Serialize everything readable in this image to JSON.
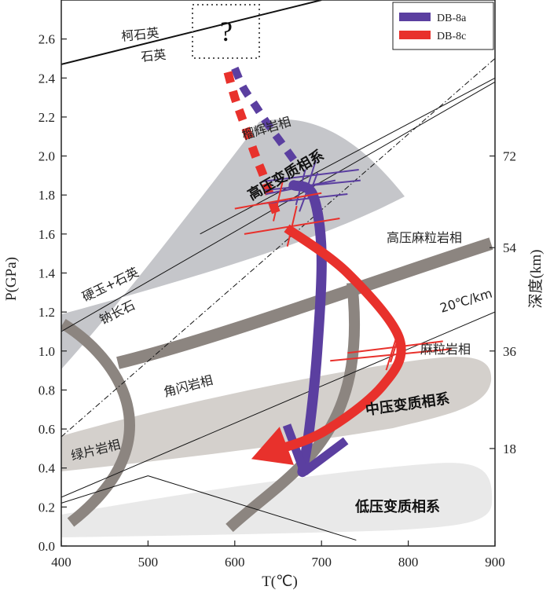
{
  "chart_data": {
    "type": "line",
    "title": "",
    "xlabel": "T(℃)",
    "ylabel": "P(GPa)",
    "y2label": "深度(km)",
    "xlim": [
      400,
      900
    ],
    "ylim": [
      0,
      2.8
    ],
    "xticks": [
      400,
      500,
      600,
      700,
      800,
      900
    ],
    "yticks": [
      "0.0",
      "0.2",
      "0.4",
      "0.6",
      "0.8",
      "1.0",
      "1.2",
      "1.4",
      "1.6",
      "1.8",
      "2.0",
      "2.2",
      "2.4",
      "2.6"
    ],
    "depth_ticks": [
      {
        "label": "18",
        "p": 0.5
      },
      {
        "label": "36",
        "p": 1.0
      },
      {
        "label": "54",
        "p": 1.53
      },
      {
        "label": "72",
        "p": 2.0
      }
    ],
    "legend": {
      "position": "top-right",
      "entries": [
        {
          "name": "DB-8a",
          "color": "#5b3fa0"
        },
        {
          "name": "DB-8c",
          "color": "#e8312c"
        }
      ]
    },
    "colors": {
      "db8a": "#5b3fa0",
      "db8c": "#e8312c",
      "hp_field": "#c5c6ca",
      "mp_field": "#d4d0cc",
      "lp_field": "#e8e8e8",
      "facies_band": "#8c8580"
    },
    "question_mark": "?",
    "reactions": [
      {
        "name": "coesite-quartz",
        "labels": [
          "柯石英",
          "石英"
        ],
        "x": [
          400,
          700
        ],
        "y": [
          2.47,
          2.8
        ]
      },
      {
        "name": "jadeite-quartz-albite",
        "labels": [
          "硬玉+石英",
          "钠长石"
        ],
        "x": [
          400,
          900
        ],
        "y": [
          1.1,
          2.38
        ]
      },
      {
        "name": "geotherm-20",
        "label": "20℃/km",
        "x": [
          400,
          900
        ],
        "y": [
          0.56,
          2.5
        ]
      }
    ],
    "facies": [
      {
        "name": "eclogite",
        "label": "榴辉岩相"
      },
      {
        "name": "hp-granulite",
        "label": "高压麻粒岩相"
      },
      {
        "name": "granulite",
        "label": "麻粒岩相"
      },
      {
        "name": "amphibolite",
        "label": "角闪岩相"
      },
      {
        "name": "greenschist",
        "label": "绿片岩相"
      }
    ],
    "facies_series": [
      {
        "name": "high-pressure",
        "label": "高压变质相系"
      },
      {
        "name": "medium-pressure",
        "label": "中压变质相系"
      },
      {
        "name": "low-pressure",
        "label": "低压变质相系"
      }
    ],
    "series": [
      {
        "name": "DB-8a",
        "color": "#5b3fa0",
        "prograde_dashed": {
          "x": [
            600,
            610,
            625,
            640,
            655,
            668
          ],
          "y": [
            2.45,
            2.35,
            2.25,
            2.15,
            2.06,
            1.98
          ]
        },
        "retrograde": {
          "x": [
            668,
            690,
            700,
            695,
            686,
            678
          ],
          "y": [
            1.85,
            1.8,
            1.5,
            1.0,
            0.6,
            0.38
          ]
        },
        "arrow_end": [
          {
            "x": [
              660,
              680
            ],
            "y": [
              0.62,
              0.38
            ]
          },
          {
            "x": [
              728,
              680
            ],
            "y": [
              0.54,
              0.38
            ]
          }
        ],
        "pt_estimates": [
          {
            "t": 688,
            "p": 1.9,
            "dt": 55,
            "dp": 0.06
          },
          {
            "t": 690,
            "p": 1.85,
            "dt": 55,
            "dp": 0.05
          },
          {
            "t": 680,
            "p": 1.78,
            "dt": 50,
            "dp": 0.05
          },
          {
            "t": 676,
            "p": 1.84,
            "dt": 40,
            "dp": 0.07
          }
        ]
      },
      {
        "name": "DB-8c",
        "color": "#e8312c",
        "prograde_dashed": {
          "x": [
            592,
            600,
            608,
            616,
            624,
            633,
            642,
            650
          ],
          "y": [
            2.43,
            2.3,
            2.2,
            2.1,
            2.0,
            1.9,
            1.78,
            1.68
          ]
        },
        "retrograde": {
          "x": [
            660,
            730,
            790,
            770,
            700,
            630
          ],
          "y": [
            1.63,
            1.4,
            1.06,
            0.82,
            0.58,
            0.47
          ]
        },
        "pt_estimates": [
          {
            "t": 650,
            "p": 1.77,
            "dt": 50,
            "dp": 0.08
          },
          {
            "t": 666,
            "p": 1.64,
            "dt": 55,
            "dp": 0.08
          },
          {
            "t": 780,
            "p": 0.98,
            "dt": 70,
            "dp": 0.06
          },
          {
            "t": 785,
            "p": 1.02,
            "dt": 55,
            "dp": 0.06
          }
        ]
      }
    ]
  }
}
